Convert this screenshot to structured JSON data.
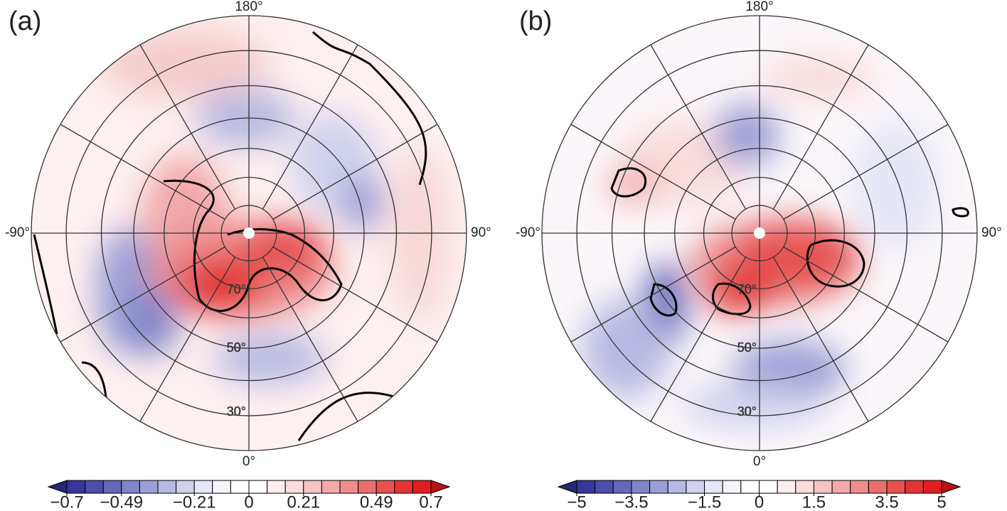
{
  "panels": [
    {
      "label": "(a)",
      "lon_labels": {
        "top": "180°",
        "left": "-90°",
        "right": "90°",
        "bottom": "0°"
      },
      "lat_labels": [
        "70°",
        "50°",
        "30°"
      ],
      "colorbar": {
        "lim": [
          -0.7,
          0.7
        ],
        "ticks": [
          {
            "value": -0.7,
            "label": "−0.7"
          },
          {
            "value": -0.49,
            "label": "−0.49"
          },
          {
            "value": -0.21,
            "label": "−0.21"
          },
          0,
          0.21,
          0.49,
          0.7
        ],
        "colors": [
          "#35379a",
          "#4a4eab",
          "#6468ba",
          "#8084c8",
          "#9c9fd6",
          "#b7b9e3",
          "#cfd1ee",
          "#e5e6f6",
          "#f4f4fb",
          "#ffffff",
          "#ffffff",
          "#fdeeee",
          "#fadcdc",
          "#f6c4c4",
          "#f2a9a9",
          "#ee8d8d",
          "#ea7070",
          "#e65252",
          "#e23434",
          "#dd1f1f"
        ]
      }
    },
    {
      "label": "(b)",
      "lon_labels": {
        "top": "180°",
        "left": "-90°",
        "right": "90°",
        "bottom": "0°"
      },
      "lat_labels": [
        "70°",
        "50°",
        "30°"
      ],
      "colorbar": {
        "lim": [
          -5,
          5
        ],
        "ticks": [
          {
            "value": -5,
            "label": "−5"
          },
          {
            "value": -3.5,
            "label": "−3.5"
          },
          {
            "value": -1.5,
            "label": "−1.5"
          },
          0,
          1.5,
          3.5,
          5
        ],
        "colors": [
          "#35379a",
          "#4a4eab",
          "#6468ba",
          "#8084c8",
          "#9c9fd6",
          "#b7b9e3",
          "#cfd1ee",
          "#e5e6f6",
          "#f4f4fb",
          "#ffffff",
          "#ffffff",
          "#fdeeee",
          "#fadcdc",
          "#f6c4c4",
          "#f2a9a9",
          "#ee8d8d",
          "#ea7070",
          "#e65252",
          "#e23434",
          "#dd1f1f"
        ]
      }
    }
  ]
}
